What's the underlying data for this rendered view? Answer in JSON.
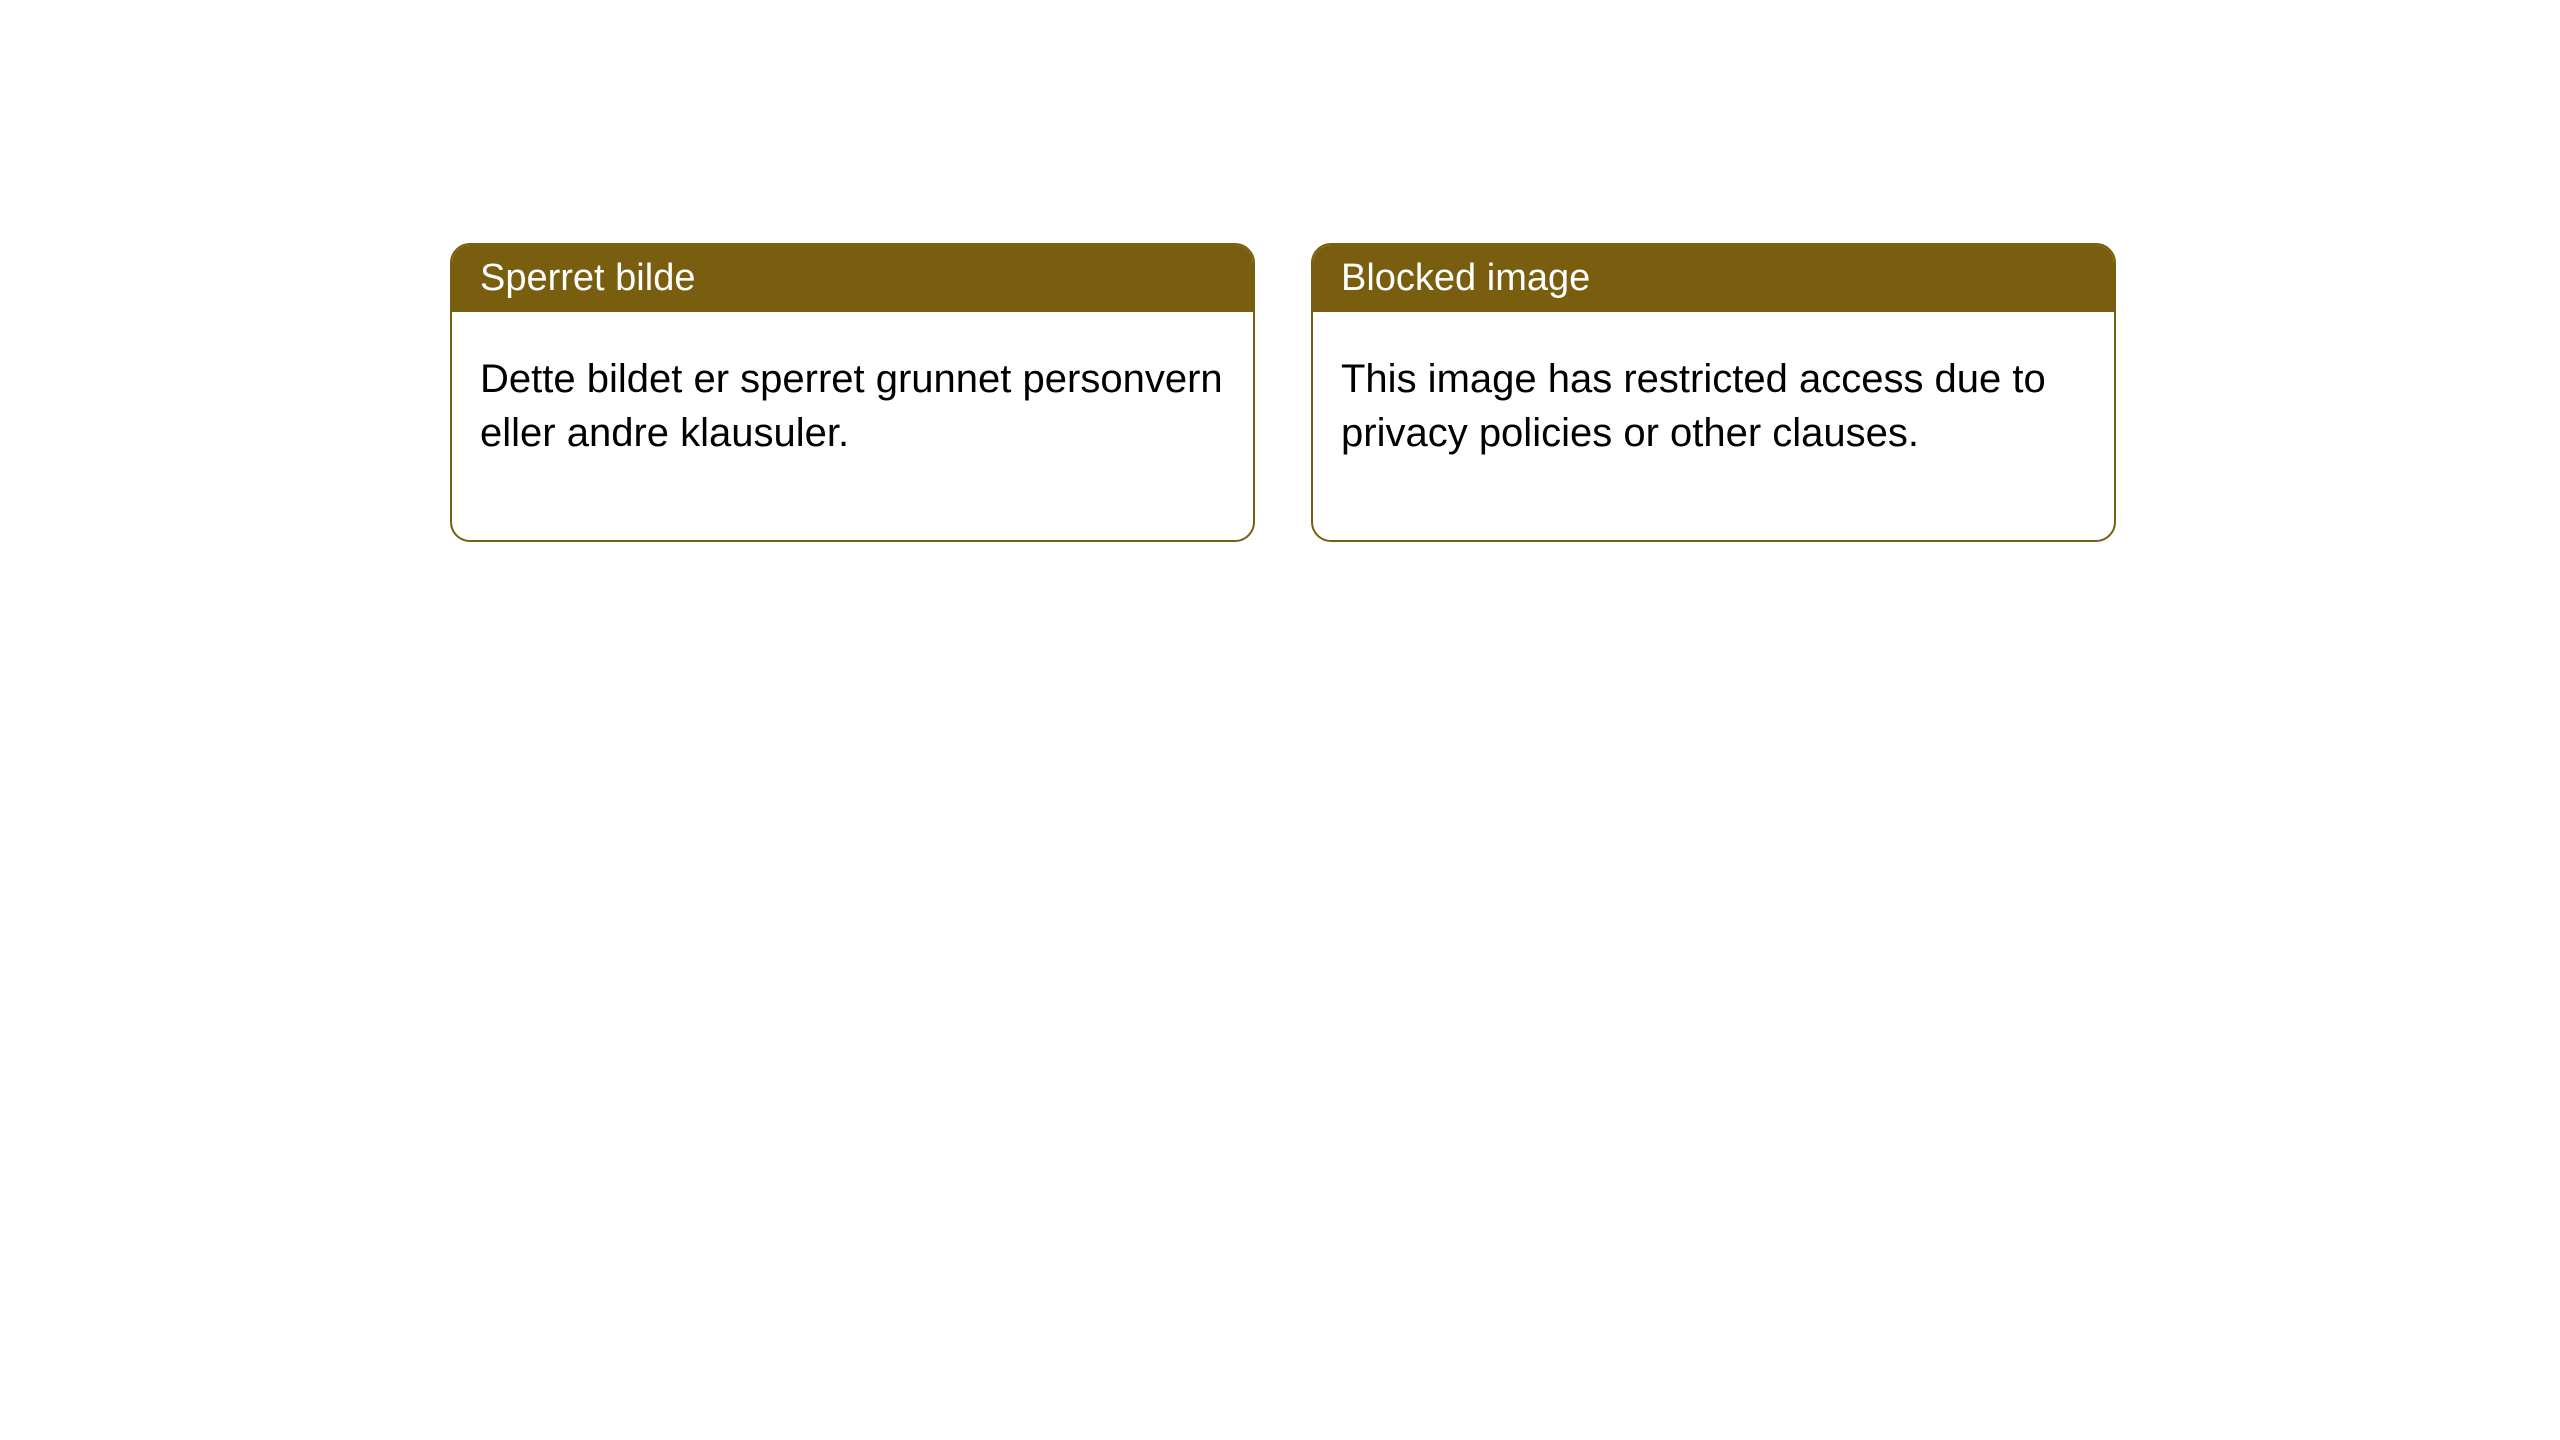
{
  "layout": {
    "background_color": "#ffffff",
    "card_border_color": "#785e0e",
    "card_header_bg": "#785e0e",
    "card_header_text_color": "#ffffff",
    "card_body_text_color": "#000000",
    "card_border_radius": 20,
    "card_border_width": 2,
    "header_font_size": 38,
    "body_font_size": 40
  },
  "cards": [
    {
      "title": "Sperret bilde",
      "body": "Dette bildet er sperret grunnet personvern eller andre klausuler."
    },
    {
      "title": "Blocked image",
      "body": "This image has restricted access due to privacy policies or other clauses."
    }
  ]
}
